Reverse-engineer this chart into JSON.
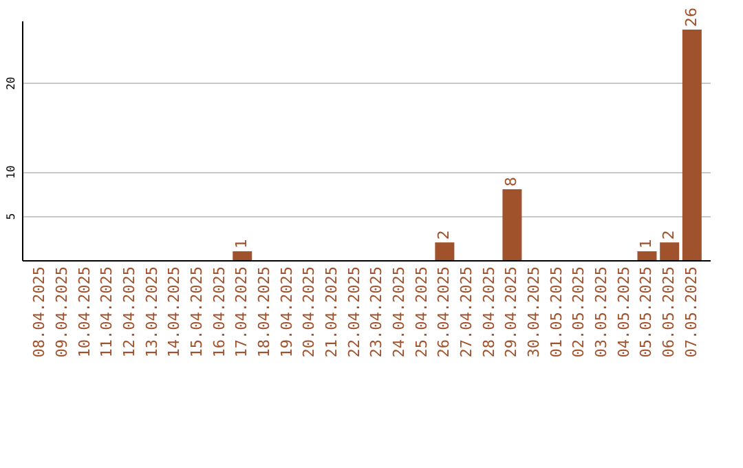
{
  "chart_data": {
    "type": "bar",
    "categories": [
      "08.04.2025",
      "09.04.2025",
      "10.04.2025",
      "11.04.2025",
      "12.04.2025",
      "13.04.2025",
      "14.04.2025",
      "15.04.2025",
      "16.04.2025",
      "17.04.2025",
      "18.04.2025",
      "19.04.2025",
      "20.04.2025",
      "21.04.2025",
      "22.04.2025",
      "23.04.2025",
      "24.04.2025",
      "25.04.2025",
      "26.04.2025",
      "27.04.2025",
      "28.04.2025",
      "29.04.2025",
      "30.04.2025",
      "01.05.2025",
      "02.05.2025",
      "03.05.2025",
      "04.05.2025",
      "05.05.2025",
      "06.05.2025",
      "07.05.2025"
    ],
    "values": [
      0,
      0,
      0,
      0,
      0,
      0,
      0,
      0,
      0,
      1,
      0,
      0,
      0,
      0,
      0,
      0,
      0,
      0,
      2,
      0,
      0,
      8,
      0,
      0,
      0,
      0,
      0,
      1,
      2,
      26
    ],
    "value_labels": [
      null,
      null,
      null,
      null,
      null,
      null,
      null,
      null,
      null,
      "1",
      null,
      null,
      null,
      null,
      null,
      null,
      null,
      null,
      "2",
      null,
      null,
      "8",
      null,
      null,
      null,
      null,
      null,
      "1",
      "2",
      "26"
    ],
    "color": "#a0522d",
    "ylim": [
      0,
      27
    ],
    "yticks": [
      5,
      10,
      20
    ],
    "grid": "y"
  }
}
